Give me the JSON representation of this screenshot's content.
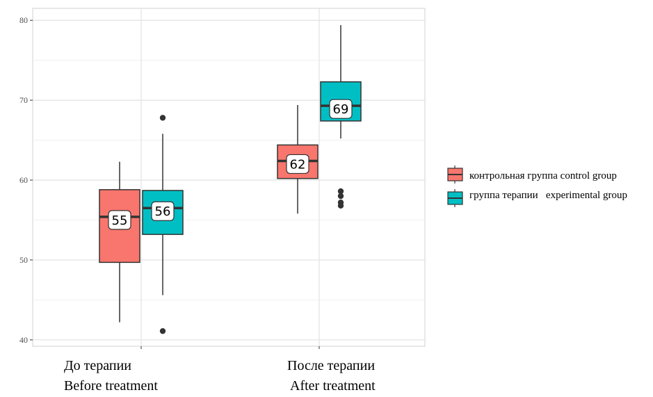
{
  "chart_data": {
    "type": "box",
    "title": "",
    "xlabel": "",
    "ylabel": "",
    "ylim": [
      39.2,
      81.5
    ],
    "yticks": [
      40,
      50,
      60,
      70,
      80
    ],
    "grid": true,
    "legend_position": "right",
    "categories": [
      {
        "line1": "До терапии",
        "line2": "Before treatment"
      },
      {
        "line1": "После терапии",
        "line2": "After treatment"
      }
    ],
    "series": [
      {
        "name": "контрольная группа control group",
        "color": "#F8766D",
        "boxes": [
          {
            "whisker_low": 42.2,
            "q1": 49.7,
            "median": 55.4,
            "q3": 58.8,
            "whisker_high": 62.3,
            "label": "55",
            "outliers": []
          },
          {
            "whisker_low": 55.8,
            "q1": 60.2,
            "median": 62.4,
            "q3": 64.4,
            "whisker_high": 69.4,
            "label": "62",
            "outliers": []
          }
        ]
      },
      {
        "name": "группа терапии   experimental group",
        "color": "#00BFC4",
        "boxes": [
          {
            "whisker_low": 45.6,
            "q1": 53.2,
            "median": 56.5,
            "q3": 58.7,
            "whisker_high": 65.8,
            "label": "56",
            "outliers": [
              67.8,
              41.1
            ]
          },
          {
            "whisker_low": 65.2,
            "q1": 67.4,
            "median": 69.3,
            "q3": 72.3,
            "whisker_high": 79.4,
            "label": "69",
            "outliers": [
              58.6,
              58.0,
              57.2,
              56.8
            ]
          }
        ]
      }
    ]
  }
}
